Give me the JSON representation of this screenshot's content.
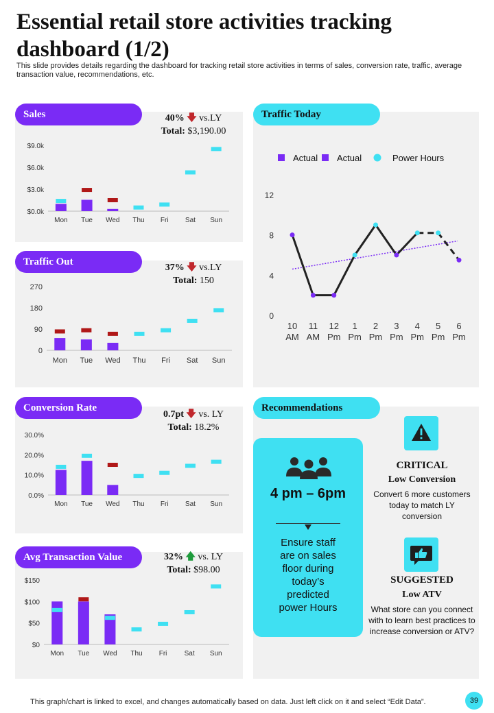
{
  "title": "Essential retail store activities tracking dashboard (1/2)",
  "subtitle": "This slide provides details regarding the dashboard for tracking retail store activities in terms of sales, conversion rate, traffic, average transaction value, recommendations, etc.",
  "colors": {
    "purple": "#7a2bf5",
    "cyan": "#3fe0f2",
    "red": "#b01818",
    "green": "#1e9b3c",
    "panel": "#f1f1f1"
  },
  "sales": {
    "label": "Sales",
    "kpi": {
      "pct": "40%",
      "direction": "down",
      "vs": "vs.LY",
      "total_label": "Total:",
      "total_value": "$3,190.00"
    }
  },
  "traffic_out": {
    "label": "Traffic  Out",
    "kpi": {
      "pct": "37%",
      "direction": "down",
      "vs": "vs.LY",
      "total_label": "Total:",
      "total_value": "150"
    }
  },
  "conversion": {
    "label": "Conversion Rate",
    "kpi": {
      "pct": "0.7pt",
      "direction": "down",
      "vs": "vs. LY",
      "total_label": "Total:",
      "total_value": "18.2%"
    }
  },
  "atv": {
    "label": "Avg Transaction  Value",
    "kpi": {
      "pct": "32%",
      "direction": "up",
      "vs": "vs. LY",
      "total_label": "Total:",
      "total_value": "$98.00"
    }
  },
  "traffic_today": {
    "label": "Traffic  Today"
  },
  "recommendations": {
    "label": "Recommendations",
    "time_window": "4 pm – 6pm",
    "staff_note": "Ensure staff are on sales floor  during today’s predicted power Hours",
    "critical": {
      "title": "CRITICAL",
      "subtitle": "Low Conversion",
      "body": "Convert  6 more customers today to match LY conversion"
    },
    "suggested": {
      "title": "SUGGESTED",
      "subtitle": "Low ATV",
      "body": "What store can you connect with to learn best practices to increase conversion  or ATV?"
    }
  },
  "footer": "This graph/chart is linked to excel,  and changes automatically based on data. Just left click on it and select “Edit Data”.",
  "page_number": "39",
  "chart_data": [
    {
      "id": "sales",
      "type": "bar",
      "categories": [
        "Mon",
        "Tue",
        "Wed",
        "Thu",
        "Fri",
        "Sat",
        "Sun"
      ],
      "series": [
        {
          "name": "Actual",
          "role": "bar",
          "values": [
            1000,
            1550,
            300,
            null,
            null,
            null,
            null
          ]
        },
        {
          "name": "Last Year",
          "role": "marker",
          "color": "#b01818",
          "values": [
            null,
            2900,
            1500,
            null,
            null,
            null,
            null
          ]
        },
        {
          "name": "Target",
          "role": "marker",
          "color": "#3fe0f2",
          "values": [
            1400,
            null,
            null,
            500,
            900,
            5300,
            8500
          ]
        }
      ],
      "yticks": [
        "$0.0k",
        "$3.0k",
        "$6.0k",
        "$9.0k"
      ],
      "ylim": [
        0,
        9000
      ]
    },
    {
      "id": "traffic_out",
      "type": "bar",
      "categories": [
        "Mon",
        "Tue",
        "Wed",
        "Thu",
        "Fri",
        "Sat",
        "Sun"
      ],
      "series": [
        {
          "name": "Actual",
          "role": "bar",
          "values": [
            52,
            46,
            32,
            null,
            null,
            null,
            null
          ]
        },
        {
          "name": "Last Year",
          "role": "marker",
          "color": "#b01818",
          "values": [
            80,
            85,
            70,
            null,
            null,
            null,
            null
          ]
        },
        {
          "name": "Target",
          "role": "marker",
          "color": "#3fe0f2",
          "values": [
            null,
            null,
            null,
            70,
            85,
            125,
            170
          ]
        }
      ],
      "yticks": [
        "0",
        "90",
        "180",
        "270"
      ],
      "ylim": [
        0,
        270
      ]
    },
    {
      "id": "conversion",
      "type": "bar",
      "categories": [
        "Mon",
        "Tue",
        "Wed",
        "Thu",
        "Fri",
        "Sat",
        "Sun"
      ],
      "series": [
        {
          "name": "Actual",
          "role": "bar",
          "values": [
            12.5,
            17,
            5,
            null,
            null,
            null,
            null
          ]
        },
        {
          "name": "Last Year",
          "role": "marker",
          "color": "#b01818",
          "values": [
            null,
            null,
            15,
            null,
            null,
            null,
            null
          ]
        },
        {
          "name": "Target",
          "role": "marker",
          "color": "#3fe0f2",
          "values": [
            14,
            19.5,
            null,
            9.5,
            11,
            14.5,
            16.5
          ]
        }
      ],
      "yticks": [
        "0.0%",
        "10.0%",
        "20.0%",
        "30.0%"
      ],
      "ylim": [
        0,
        30
      ]
    },
    {
      "id": "atv",
      "type": "bar",
      "categories": [
        "Mon",
        "Tue",
        "Wed",
        "Thu",
        "Fri",
        "Sat",
        "Sun"
      ],
      "series": [
        {
          "name": "Actual",
          "role": "bar",
          "values": [
            100,
            100,
            70,
            null,
            null,
            null,
            null
          ]
        },
        {
          "name": "Last Year",
          "role": "marker",
          "color": "#b01818",
          "values": [
            null,
            105,
            null,
            null,
            null,
            null,
            null
          ]
        },
        {
          "name": "Target",
          "role": "marker",
          "color": "#3fe0f2",
          "values": [
            80,
            null,
            62,
            35,
            48,
            75,
            135
          ]
        }
      ],
      "yticks": [
        "$0",
        "$50",
        "$100",
        "$150"
      ],
      "ylim": [
        0,
        150
      ]
    },
    {
      "id": "traffic_today",
      "type": "line",
      "categories": [
        "10 AM",
        "11 AM",
        "12 Pm",
        "1 Pm",
        "2 Pm",
        "3 Pm",
        "4 Pm",
        "5 Pm",
        "6 Pm"
      ],
      "series": [
        {
          "name": "Actual",
          "color": "#222222",
          "values": [
            8,
            2,
            2,
            6,
            9,
            6,
            8.2,
            8.2,
            5.5
          ]
        }
      ],
      "legend": [
        "Actual",
        "Actual",
        "Power Hours"
      ],
      "trendline": [
        4.6,
        7.4
      ],
      "yticks": [
        "0",
        "4",
        "8",
        "12"
      ],
      "ylim": [
        0,
        12
      ]
    }
  ]
}
